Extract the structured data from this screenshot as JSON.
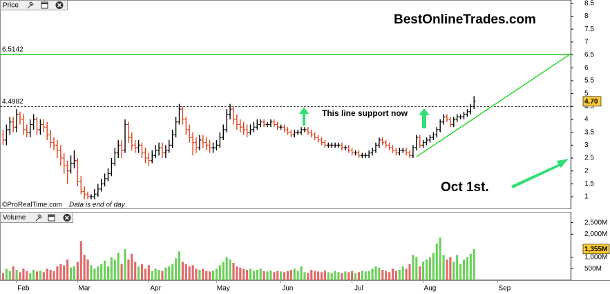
{
  "chart_data": [
    {
      "type": "ohlc",
      "title": "Price",
      "open": [
        3.4,
        3.2,
        3.6,
        3.9,
        3.7,
        4.2,
        4.0,
        3.6,
        3.5,
        3.8,
        4.0,
        3.6,
        3.8,
        3.7,
        3.4,
        3.1,
        3.0,
        2.8,
        2.5,
        2.2,
        2.0,
        2.3,
        2.4,
        1.6,
        1.2,
        1.1,
        1.0,
        1.0,
        1.1,
        1.3,
        1.5,
        1.7,
        1.9,
        2.3,
        2.7,
        3.0,
        2.8,
        3.8,
        3.3,
        3.0,
        2.9,
        3.0,
        2.7,
        2.5,
        2.4,
        2.6,
        2.8,
        2.9,
        2.7,
        2.8,
        3.0,
        3.4,
        3.9,
        4.4,
        4.0,
        3.6,
        3.3,
        3.1,
        2.9,
        3.2,
        3.1,
        3.0,
        2.9,
        2.9,
        3.0,
        3.3,
        3.6,
        4.2,
        4.4,
        4.0,
        3.8,
        3.7,
        3.6,
        3.5,
        3.6,
        3.7,
        3.8,
        3.9,
        3.8,
        3.8,
        3.9,
        3.8,
        3.7,
        3.7,
        3.6,
        3.5,
        3.4,
        3.5,
        3.5,
        3.6,
        3.6,
        3.5,
        3.4,
        3.3,
        3.2,
        3.1,
        3.0,
        3.0,
        3.0,
        3.0,
        3.0,
        2.9,
        2.9,
        2.8,
        2.7,
        2.7,
        2.6,
        2.6,
        2.6,
        2.7,
        2.8,
        3.0,
        3.2,
        3.1,
        3.0,
        2.9,
        2.8,
        2.7,
        2.8,
        2.8,
        2.7,
        2.6,
        2.9,
        3.3,
        3.0,
        3.1,
        3.2,
        3.3,
        3.4,
        3.6,
        3.9,
        4.1,
        4.0,
        3.8,
        4.0,
        4.1,
        4.1,
        4.2,
        4.3,
        4.5,
        null,
        null,
        null,
        null,
        null,
        null,
        null,
        null,
        null,
        null,
        null,
        null,
        null,
        null,
        null,
        null,
        null,
        null,
        null,
        null,
        null,
        null,
        null,
        null,
        null,
        null,
        null,
        null
      ],
      "high": [
        3.6,
        3.8,
        4.1,
        4.1,
        4.4,
        4.3,
        4.2,
        3.8,
        4.0,
        4.2,
        4.1,
        4.0,
        4.0,
        3.9,
        3.6,
        3.3,
        3.2,
        3.0,
        2.7,
        2.4,
        2.6,
        2.8,
        2.5,
        1.8,
        1.4,
        1.2,
        1.1,
        1.3,
        1.5,
        1.7,
        1.9,
        2.1,
        2.5,
        2.9,
        3.2,
        3.2,
        4.0,
        3.9,
        3.5,
        3.2,
        3.2,
        3.1,
        2.9,
        2.7,
        2.8,
        3.0,
        3.1,
        3.1,
        3.0,
        3.2,
        3.6,
        4.1,
        4.6,
        4.5,
        4.1,
        3.8,
        3.5,
        3.3,
        3.4,
        3.4,
        3.3,
        3.2,
        3.1,
        3.2,
        3.5,
        3.8,
        4.4,
        4.6,
        4.5,
        4.2,
        4.0,
        3.9,
        3.8,
        3.8,
        3.9,
        4.0,
        4.0,
        4.0,
        3.9,
        4.0,
        4.0,
        3.9,
        3.8,
        3.8,
        3.7,
        3.6,
        3.6,
        3.6,
        3.7,
        3.7,
        3.7,
        3.6,
        3.5,
        3.4,
        3.3,
        3.2,
        3.1,
        3.1,
        3.1,
        3.1,
        3.1,
        3.0,
        3.0,
        2.9,
        2.8,
        2.8,
        2.7,
        2.7,
        2.8,
        2.9,
        3.1,
        3.3,
        3.3,
        3.2,
        3.1,
        3.0,
        2.9,
        2.9,
        2.9,
        2.9,
        2.8,
        3.0,
        3.4,
        3.4,
        3.2,
        3.3,
        3.4,
        3.5,
        3.7,
        4.0,
        4.2,
        4.2,
        4.1,
        4.1,
        4.2,
        4.2,
        4.3,
        4.4,
        4.6,
        4.9,
        null,
        null,
        null,
        null,
        null,
        null,
        null,
        null,
        null,
        null,
        null,
        null,
        null,
        null,
        null,
        null,
        null,
        null,
        null,
        null,
        null,
        null,
        null,
        null,
        null,
        null,
        null,
        null
      ],
      "low": [
        3.0,
        3.0,
        3.4,
        3.5,
        3.5,
        3.8,
        3.4,
        3.3,
        3.3,
        3.6,
        3.4,
        3.4,
        3.5,
        3.2,
        2.9,
        2.8,
        2.5,
        2.2,
        1.9,
        1.5,
        1.9,
        2.1,
        1.4,
        1.1,
        0.9,
        0.9,
        0.9,
        0.9,
        1.0,
        1.2,
        1.4,
        1.6,
        1.8,
        2.2,
        2.5,
        2.5,
        2.7,
        3.1,
        2.8,
        2.7,
        2.7,
        2.5,
        2.3,
        2.2,
        2.3,
        2.5,
        2.6,
        2.5,
        2.5,
        2.7,
        2.9,
        3.3,
        3.8,
        3.8,
        3.4,
        3.1,
        2.6,
        2.7,
        2.8,
        2.9,
        2.8,
        2.7,
        2.7,
        2.8,
        2.9,
        3.2,
        3.5,
        4.0,
        3.8,
        3.6,
        3.5,
        3.4,
        3.3,
        3.4,
        3.5,
        3.6,
        3.7,
        3.7,
        3.7,
        3.7,
        3.7,
        3.6,
        3.6,
        3.5,
        3.4,
        3.3,
        3.3,
        3.4,
        3.4,
        3.5,
        3.4,
        3.3,
        3.2,
        3.1,
        3.0,
        2.9,
        2.9,
        2.9,
        2.9,
        2.9,
        2.8,
        2.8,
        2.7,
        2.6,
        2.6,
        2.5,
        2.5,
        2.5,
        2.5,
        2.6,
        2.7,
        2.9,
        3.0,
        2.9,
        2.8,
        2.7,
        2.6,
        2.6,
        2.7,
        2.6,
        2.5,
        2.5,
        2.8,
        2.9,
        2.9,
        3.0,
        3.1,
        3.2,
        3.3,
        3.5,
        3.8,
        3.9,
        3.7,
        3.7,
        3.9,
        4.0,
        4.0,
        4.1,
        4.2,
        4.4,
        null,
        null,
        null,
        null,
        null,
        null,
        null,
        null,
        null,
        null,
        null,
        null,
        null,
        null,
        null,
        null,
        null,
        null,
        null,
        null,
        null,
        null,
        null,
        null,
        null,
        null,
        null,
        null
      ],
      "close": [
        3.2,
        3.6,
        3.9,
        3.7,
        4.2,
        4.0,
        3.6,
        3.5,
        3.8,
        4.0,
        3.6,
        3.8,
        3.7,
        3.4,
        3.1,
        3.0,
        2.8,
        2.5,
        2.2,
        2.0,
        2.3,
        2.4,
        1.6,
        1.2,
        1.1,
        1.0,
        1.0,
        1.1,
        1.3,
        1.5,
        1.7,
        1.9,
        2.3,
        2.7,
        3.0,
        2.8,
        3.8,
        3.3,
        3.0,
        2.9,
        3.0,
        2.7,
        2.5,
        2.4,
        2.6,
        2.8,
        2.9,
        2.7,
        2.8,
        3.0,
        3.4,
        3.9,
        4.4,
        4.0,
        3.6,
        3.3,
        3.1,
        2.9,
        3.2,
        3.1,
        3.0,
        2.9,
        2.9,
        3.0,
        3.3,
        3.6,
        4.2,
        4.4,
        4.0,
        3.8,
        3.7,
        3.6,
        3.5,
        3.6,
        3.7,
        3.8,
        3.9,
        3.8,
        3.8,
        3.9,
        3.8,
        3.7,
        3.7,
        3.6,
        3.5,
        3.4,
        3.5,
        3.5,
        3.6,
        3.6,
        3.5,
        3.4,
        3.3,
        3.2,
        3.1,
        3.0,
        3.0,
        3.0,
        3.0,
        3.0,
        2.9,
        2.9,
        2.8,
        2.7,
        2.7,
        2.6,
        2.6,
        2.6,
        2.7,
        2.8,
        3.0,
        3.2,
        3.1,
        3.0,
        2.9,
        2.8,
        2.7,
        2.8,
        2.8,
        2.7,
        2.6,
        2.9,
        3.3,
        3.0,
        3.1,
        3.2,
        3.3,
        3.4,
        3.6,
        3.9,
        4.1,
        4.0,
        3.8,
        4.0,
        4.1,
        4.1,
        4.2,
        4.3,
        4.5,
        4.7,
        null,
        null,
        null,
        null,
        null,
        null,
        null,
        null,
        null,
        null,
        null,
        null,
        null,
        null,
        null,
        null,
        null,
        null,
        null,
        null,
        null,
        null,
        null,
        null,
        null,
        null,
        null,
        null
      ],
      "up_color": "#000000",
      "down_color": "#e2401c",
      "ylim": [
        0.52,
        8.63
      ],
      "yticks": [
        1,
        1.5,
        2,
        2.5,
        3,
        3.5,
        4,
        4.5,
        5,
        5.5,
        6,
        6.5,
        7,
        7.5,
        8,
        8.5
      ],
      "hlines": [
        {
          "value": 6.5142,
          "color": "#22cc22",
          "style": "solid"
        },
        {
          "value": 4.4982,
          "color": "#000000",
          "style": "dashed"
        }
      ],
      "last": {
        "value": 4.7,
        "label": "4.70"
      },
      "watermark": "BestOnlineTrades.com",
      "note": "This line support now",
      "callout": "Oct 1st.",
      "credit": "©ProRealTime.com",
      "disclaimer": "Data is end of day"
    },
    {
      "type": "bar",
      "title": "Volume",
      "categories": [
        null,
        null,
        null,
        null,
        null,
        null,
        "Feb",
        null,
        null,
        null,
        null,
        null,
        null,
        null,
        null,
        null,
        null,
        null,
        null,
        null,
        null,
        null,
        null,
        null,
        "Mar",
        null,
        null,
        null,
        null,
        null,
        null,
        null,
        null,
        null,
        null,
        null,
        null,
        null,
        null,
        null,
        null,
        null,
        null,
        null,
        null,
        "Apr",
        null,
        null,
        null,
        null,
        null,
        null,
        null,
        null,
        null,
        null,
        null,
        null,
        null,
        null,
        null,
        null,
        null,
        null,
        null,
        "May",
        null,
        null,
        null,
        null,
        null,
        null,
        null,
        null,
        null,
        null,
        null,
        null,
        null,
        null,
        null,
        null,
        null,
        null,
        "Jun",
        null,
        null,
        null,
        null,
        null,
        null,
        null,
        null,
        null,
        null,
        null,
        null,
        null,
        null,
        null,
        null,
        null,
        null,
        null,
        null,
        "Jul",
        null,
        null,
        null,
        null,
        null,
        null,
        null,
        null,
        null,
        null,
        null,
        null,
        null,
        null,
        null,
        null,
        null,
        null,
        null,
        null,
        "Aug",
        null,
        null,
        null,
        null,
        null,
        null,
        null,
        null,
        null,
        null,
        null,
        null,
        null,
        null,
        null,
        null,
        null,
        null,
        null,
        null,
        null,
        "Sep",
        null,
        null,
        null,
        null,
        null,
        null,
        null,
        null,
        null,
        null,
        null,
        null,
        null,
        null,
        null,
        null,
        null,
        null,
        null
      ],
      "values": [
        300,
        500,
        400,
        600,
        450,
        350,
        500,
        400,
        300,
        450,
        380,
        420,
        350,
        500,
        450,
        400,
        600,
        700,
        650,
        900,
        550,
        600,
        800,
        1700,
        1100,
        900,
        650,
        500,
        600,
        700,
        850,
        600,
        1000,
        900,
        1200,
        700,
        1350,
        900,
        1150,
        800,
        600,
        700,
        500,
        650,
        400,
        500,
        450,
        400,
        550,
        600,
        700,
        950,
        1250,
        800,
        700,
        600,
        650,
        500,
        450,
        500,
        400,
        380,
        420,
        500,
        650,
        800,
        1000,
        900,
        750,
        600,
        550,
        500,
        450,
        500,
        400,
        450,
        500,
        400,
        380,
        420,
        350,
        400,
        380,
        350,
        400,
        450,
        500,
        400,
        600,
        350,
        300,
        450,
        400,
        380,
        350,
        420,
        350,
        300,
        400,
        350,
        300,
        380,
        350,
        400,
        300,
        350,
        420,
        380,
        400,
        500,
        600,
        550,
        450,
        400,
        350,
        500,
        400,
        450,
        600,
        500,
        700,
        1100,
        1000,
        600,
        800,
        900,
        1000,
        1200,
        1600,
        1850,
        1100,
        900,
        1000,
        800,
        1100,
        700,
        900,
        1000,
        1150,
        1355,
        null,
        null,
        null,
        null,
        null,
        null,
        null,
        null,
        null,
        null,
        null,
        null,
        null,
        null,
        null,
        null,
        null,
        null,
        null,
        null,
        null,
        null,
        null,
        null,
        null,
        null,
        null,
        null
      ],
      "up_color": "#6ccf5a",
      "down_color": "#e06a6a",
      "ylim": [
        0,
        2940
      ],
      "yticks": [
        {
          "value": 500,
          "label": "500M"
        },
        {
          "value": 1000,
          "label": "1,000M"
        },
        {
          "value": 2000,
          "label": "2,000M"
        },
        {
          "value": 2500,
          "label": "2,500M"
        }
      ],
      "last": {
        "value": 1355,
        "label": "1,355M"
      }
    }
  ]
}
